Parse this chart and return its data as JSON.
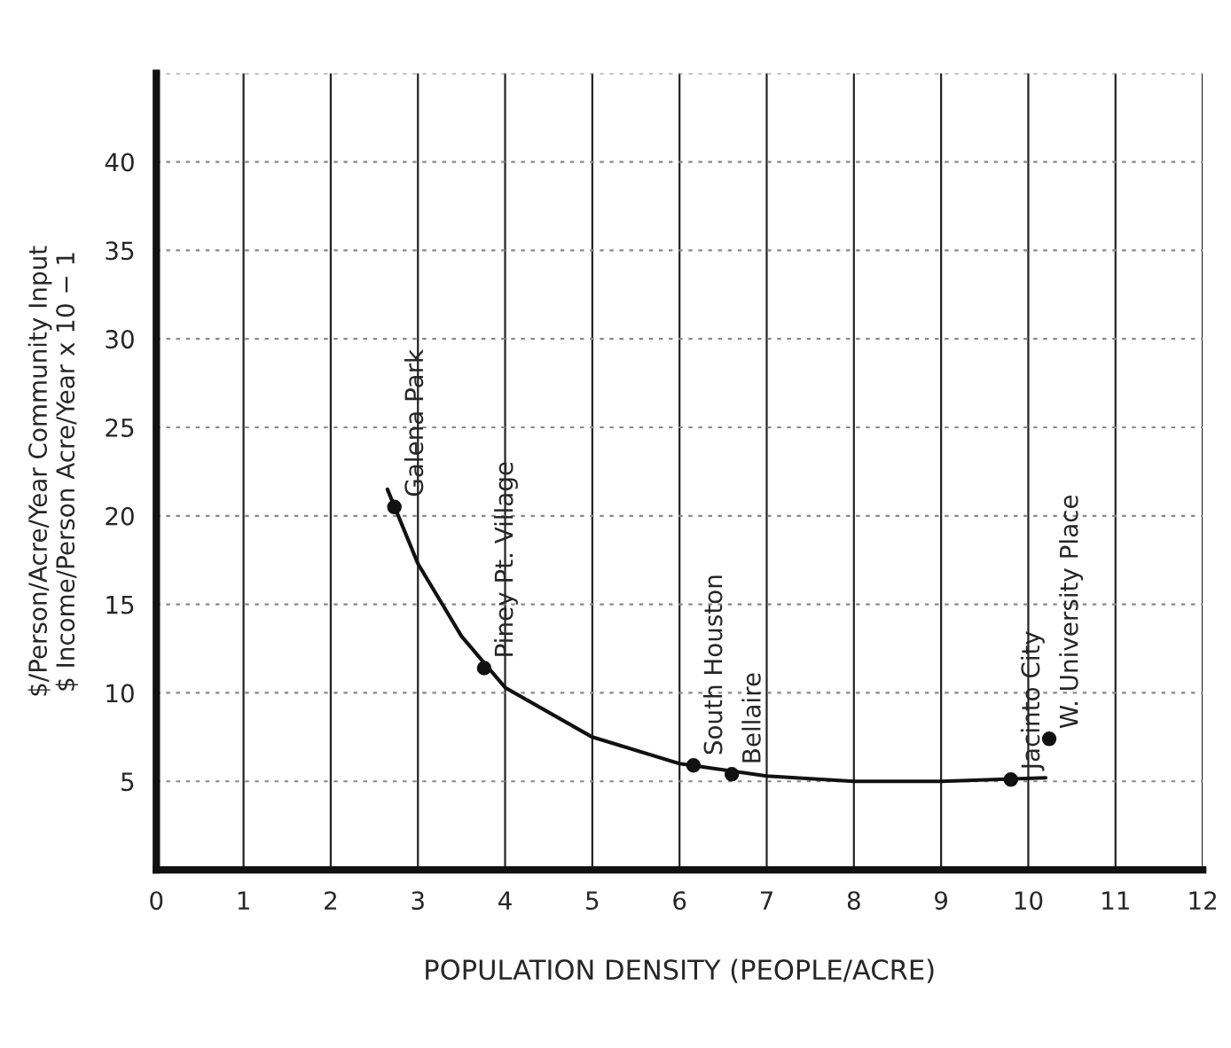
{
  "chart_data": {
    "type": "scatter",
    "xlabel": "POPULATION DENSITY (PEOPLE/ACRE)",
    "ylabel": "$/Person/Acre/Year Community Input\n$ Income/Person Acre/Year x 10 − 1",
    "series": [
      {
        "color": "#111111",
        "marker": "circle",
        "x": [
          2.73,
          3.76,
          6.16,
          6.6,
          9.8,
          10.24
        ],
        "values": [
          20.5,
          11.4,
          5.9,
          5.4,
          5.1,
          7.4
        ]
      },
      {
        "type": "line",
        "color": "#111111",
        "marker": "none",
        "line_style": "solid",
        "x": [
          2.65,
          3.0,
          3.5,
          4.0,
          5.0,
          6.0,
          7.0,
          8.0,
          9.0,
          10.2
        ],
        "values": [
          21.5,
          17.3,
          13.2,
          10.3,
          7.5,
          6.0,
          5.3,
          5.0,
          5.0,
          5.2
        ]
      }
    ],
    "annotations": [
      {
        "text": "Galena Park",
        "x": 2.73,
        "y": 20.5
      },
      {
        "text": "Piney Pt. Village",
        "x": 3.76,
        "y": 11.4
      },
      {
        "text": "South Houston",
        "x": 6.16,
        "y": 5.9
      },
      {
        "text": "Bellaire",
        "x": 6.6,
        "y": 5.4
      },
      {
        "text": "Jacinto City",
        "x": 9.8,
        "y": 5.1
      },
      {
        "text": "W. University Place",
        "x": 10.24,
        "y": 7.4
      }
    ],
    "xlim": [
      0,
      12
    ],
    "xticks": [
      0,
      1,
      2,
      3,
      4,
      5,
      6,
      7,
      8,
      9,
      10,
      11,
      12
    ],
    "ylim": [
      0,
      45
    ],
    "yticks": [
      5,
      10,
      15,
      20,
      25,
      30,
      35,
      40,
      {
        "value": 45,
        "label": null
      }
    ],
    "grid": true
  }
}
